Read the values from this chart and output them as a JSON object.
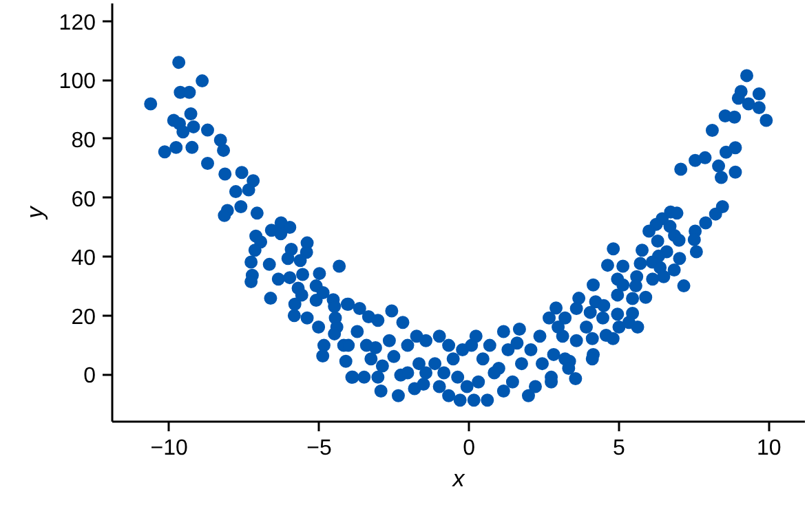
{
  "chart_data": {
    "type": "scatter",
    "xlabel": "x",
    "ylabel": "y",
    "marker": "circle",
    "grid": false,
    "xlim": [
      -11.9,
      11.2
    ],
    "ylim": [
      -16,
      126
    ],
    "xticks": [
      -10,
      -5,
      0,
      5,
      10
    ],
    "yticks": [
      0,
      20,
      40,
      60,
      80,
      100,
      120
    ],
    "x": [
      -10.62,
      -9.68,
      -8.9,
      -9.63,
      -9.33,
      -9.85,
      -9.66,
      -9.54,
      -9.28,
      -9.19,
      -8.72,
      -10.15,
      -9.77,
      -9.24,
      -8.29,
      -8.19,
      -8.72,
      -8.14,
      -7.58,
      -7.78,
      -7.2,
      -7.35,
      -8.06,
      -8.16,
      -7.61,
      -7.07,
      -6.27,
      -6.59,
      -5.98,
      -6.28,
      -7.11,
      -6.95,
      -7.14,
      -5.93,
      -5.4,
      -5.42,
      -7.27,
      -6.66,
      -6.04,
      -5.63,
      -4.33,
      -7.23,
      -7.27,
      -6.36,
      -5.98,
      -5.55,
      -4.99,
      -5.7,
      -5.1,
      -6.62,
      -5.58,
      -5.81,
      -5.1,
      -4.53,
      -4.06,
      -5.83,
      -5.4,
      -5.02,
      -4.46,
      -4.41,
      -4.49,
      -4.84,
      -4.88,
      -4.18,
      -4.11,
      -3.91,
      9.26,
      9.07,
      8.98,
      9.67,
      9.32,
      9.67,
      9.91,
      8.54,
      8.85,
      8.11,
      8.57,
      8.88,
      7.87,
      7.54,
      8.32,
      8.41,
      8.88,
      7.06,
      8.45,
      8.22,
      7.89,
      7.54,
      7.51,
      7.58,
      6.72,
      6.93,
      6.44,
      6.24,
      6.0,
      6.7,
      6.85,
      7.0,
      6.29,
      6.59,
      5.77,
      4.81,
      6.32,
      7.02,
      6.11,
      5.71,
      4.62,
      5.13,
      6.37,
      6.84,
      5.59,
      4.95,
      6.12,
      6.49,
      7.16,
      5.13,
      4.14,
      5.56,
      4.95,
      5.45,
      5.89,
      3.66,
      4.22,
      4.49,
      4.04,
      4.95,
      5.45,
      2.9,
      3.58,
      4.46,
      3.2,
      3.91,
      5.0,
      5.33,
      5.62,
      4.57,
      4.8,
      4.11,
      3.58,
      3.12,
      4.14,
      4.11,
      3.35,
      3.32,
      3.55,
      2.74,
      2.82,
      -4.87,
      -4.49,
      -4.03,
      -3.65,
      -3.35,
      -3.04,
      -2.58,
      -2.21,
      -3.73,
      -4.03,
      -3.88,
      -3.5,
      -3.27,
      -3.12,
      -2.89,
      -3.04,
      -2.94,
      -2.36,
      -2.28,
      -2.51,
      -2.05,
      -1.75,
      -1.44,
      -1.82,
      -1.52,
      -0.99,
      -0.68,
      -1.14,
      -0.84,
      -0.68,
      -0.3,
      -0.38,
      -0.53,
      -0.22,
      0.08,
      0.16,
      0.31,
      0.46,
      0.61,
      0.69,
      0.99,
      1.15,
      1.3,
      1.6,
      1.68,
      1.45,
      1.75,
      1.98,
      2.21,
      2.06,
      2.36,
      2.44,
      2.74,
      2.97,
      3.2,
      2.67,
      -0.99,
      -2.05,
      -2.66,
      -3.42,
      -0.07,
      0.84,
      1.15,
      0.23,
      -1.67,
      -1.44
    ],
    "values": [
      91.9,
      106.0,
      99.7,
      95.8,
      95.8,
      86.3,
      85.2,
      82.4,
      88.5,
      84.1,
      83.0,
      75.6,
      77.1,
      77.1,
      79.6,
      76.1,
      71.7,
      68.1,
      68.6,
      62.1,
      65.8,
      62.7,
      55.7,
      54.0,
      57.0,
      54.8,
      51.5,
      49.0,
      50.0,
      47.8,
      47.0,
      45.0,
      42.2,
      42.5,
      44.7,
      41.5,
      38.2,
      37.4,
      39.4,
      38.7,
      36.8,
      33.7,
      31.5,
      32.4,
      32.9,
      34.0,
      34.3,
      29.3,
      30.1,
      25.9,
      27.0,
      23.9,
      25.2,
      25.4,
      23.9,
      20.0,
      19.2,
      16.1,
      19.2,
      16.1,
      13.8,
      9.9,
      6.3,
      9.9,
      4.5,
      -0.9,
      101.5,
      96.1,
      93.8,
      95.3,
      91.9,
      90.6,
      86.3,
      87.8,
      87.4,
      82.9,
      75.5,
      77.0,
      73.6,
      72.7,
      70.8,
      66.9,
      68.7,
      69.7,
      57.0,
      54.5,
      51.5,
      48.7,
      45.8,
      41.7,
      55.2,
      54.8,
      52.9,
      51.0,
      48.7,
      50.3,
      47.2,
      45.6,
      45.3,
      41.7,
      42.2,
      42.7,
      40.2,
      39.4,
      38.2,
      37.7,
      37.1,
      36.8,
      36.3,
      35.5,
      33.2,
      32.4,
      32.4,
      33.2,
      30.1,
      30.4,
      30.4,
      30.1,
      27.0,
      25.8,
      26.2,
      25.9,
      24.7,
      23.4,
      21.1,
      20.5,
      20.8,
      22.6,
      22.4,
      19.2,
      19.2,
      16.1,
      16.1,
      17.7,
      16.1,
      13.3,
      12.2,
      12.2,
      11.5,
      13.0,
      6.8,
      5.3,
      4.5,
      2.1,
      -1.4,
      -0.9,
      6.8,
      27.8,
      23.1,
      23.9,
      22.4,
      19.6,
      18.4,
      21.6,
      17.7,
      14.6,
      9.9,
      -0.9,
      -0.9,
      5.3,
      9.1,
      2.9,
      -0.9,
      -5.6,
      -7.2,
      -0.2,
      6.1,
      9.9,
      13.0,
      11.5,
      -4.8,
      -3.3,
      13.0,
      9.9,
      3.7,
      0.6,
      -7.2,
      -8.7,
      -0.9,
      5.3,
      8.4,
      9.9,
      -8.7,
      -2.5,
      5.3,
      -8.7,
      9.9,
      2.1,
      -5.6,
      8.4,
      10.7,
      15.4,
      -2.5,
      3.7,
      -7.2,
      -4.1,
      8.4,
      13.0,
      3.7,
      -2.5,
      16.1,
      5.3,
      19.2,
      -4.1,
      0.6,
      11.5,
      9.9,
      -4.1,
      0.6,
      14.6,
      13.0,
      3.7,
      0.6
    ],
    "color": "#0057b0"
  }
}
